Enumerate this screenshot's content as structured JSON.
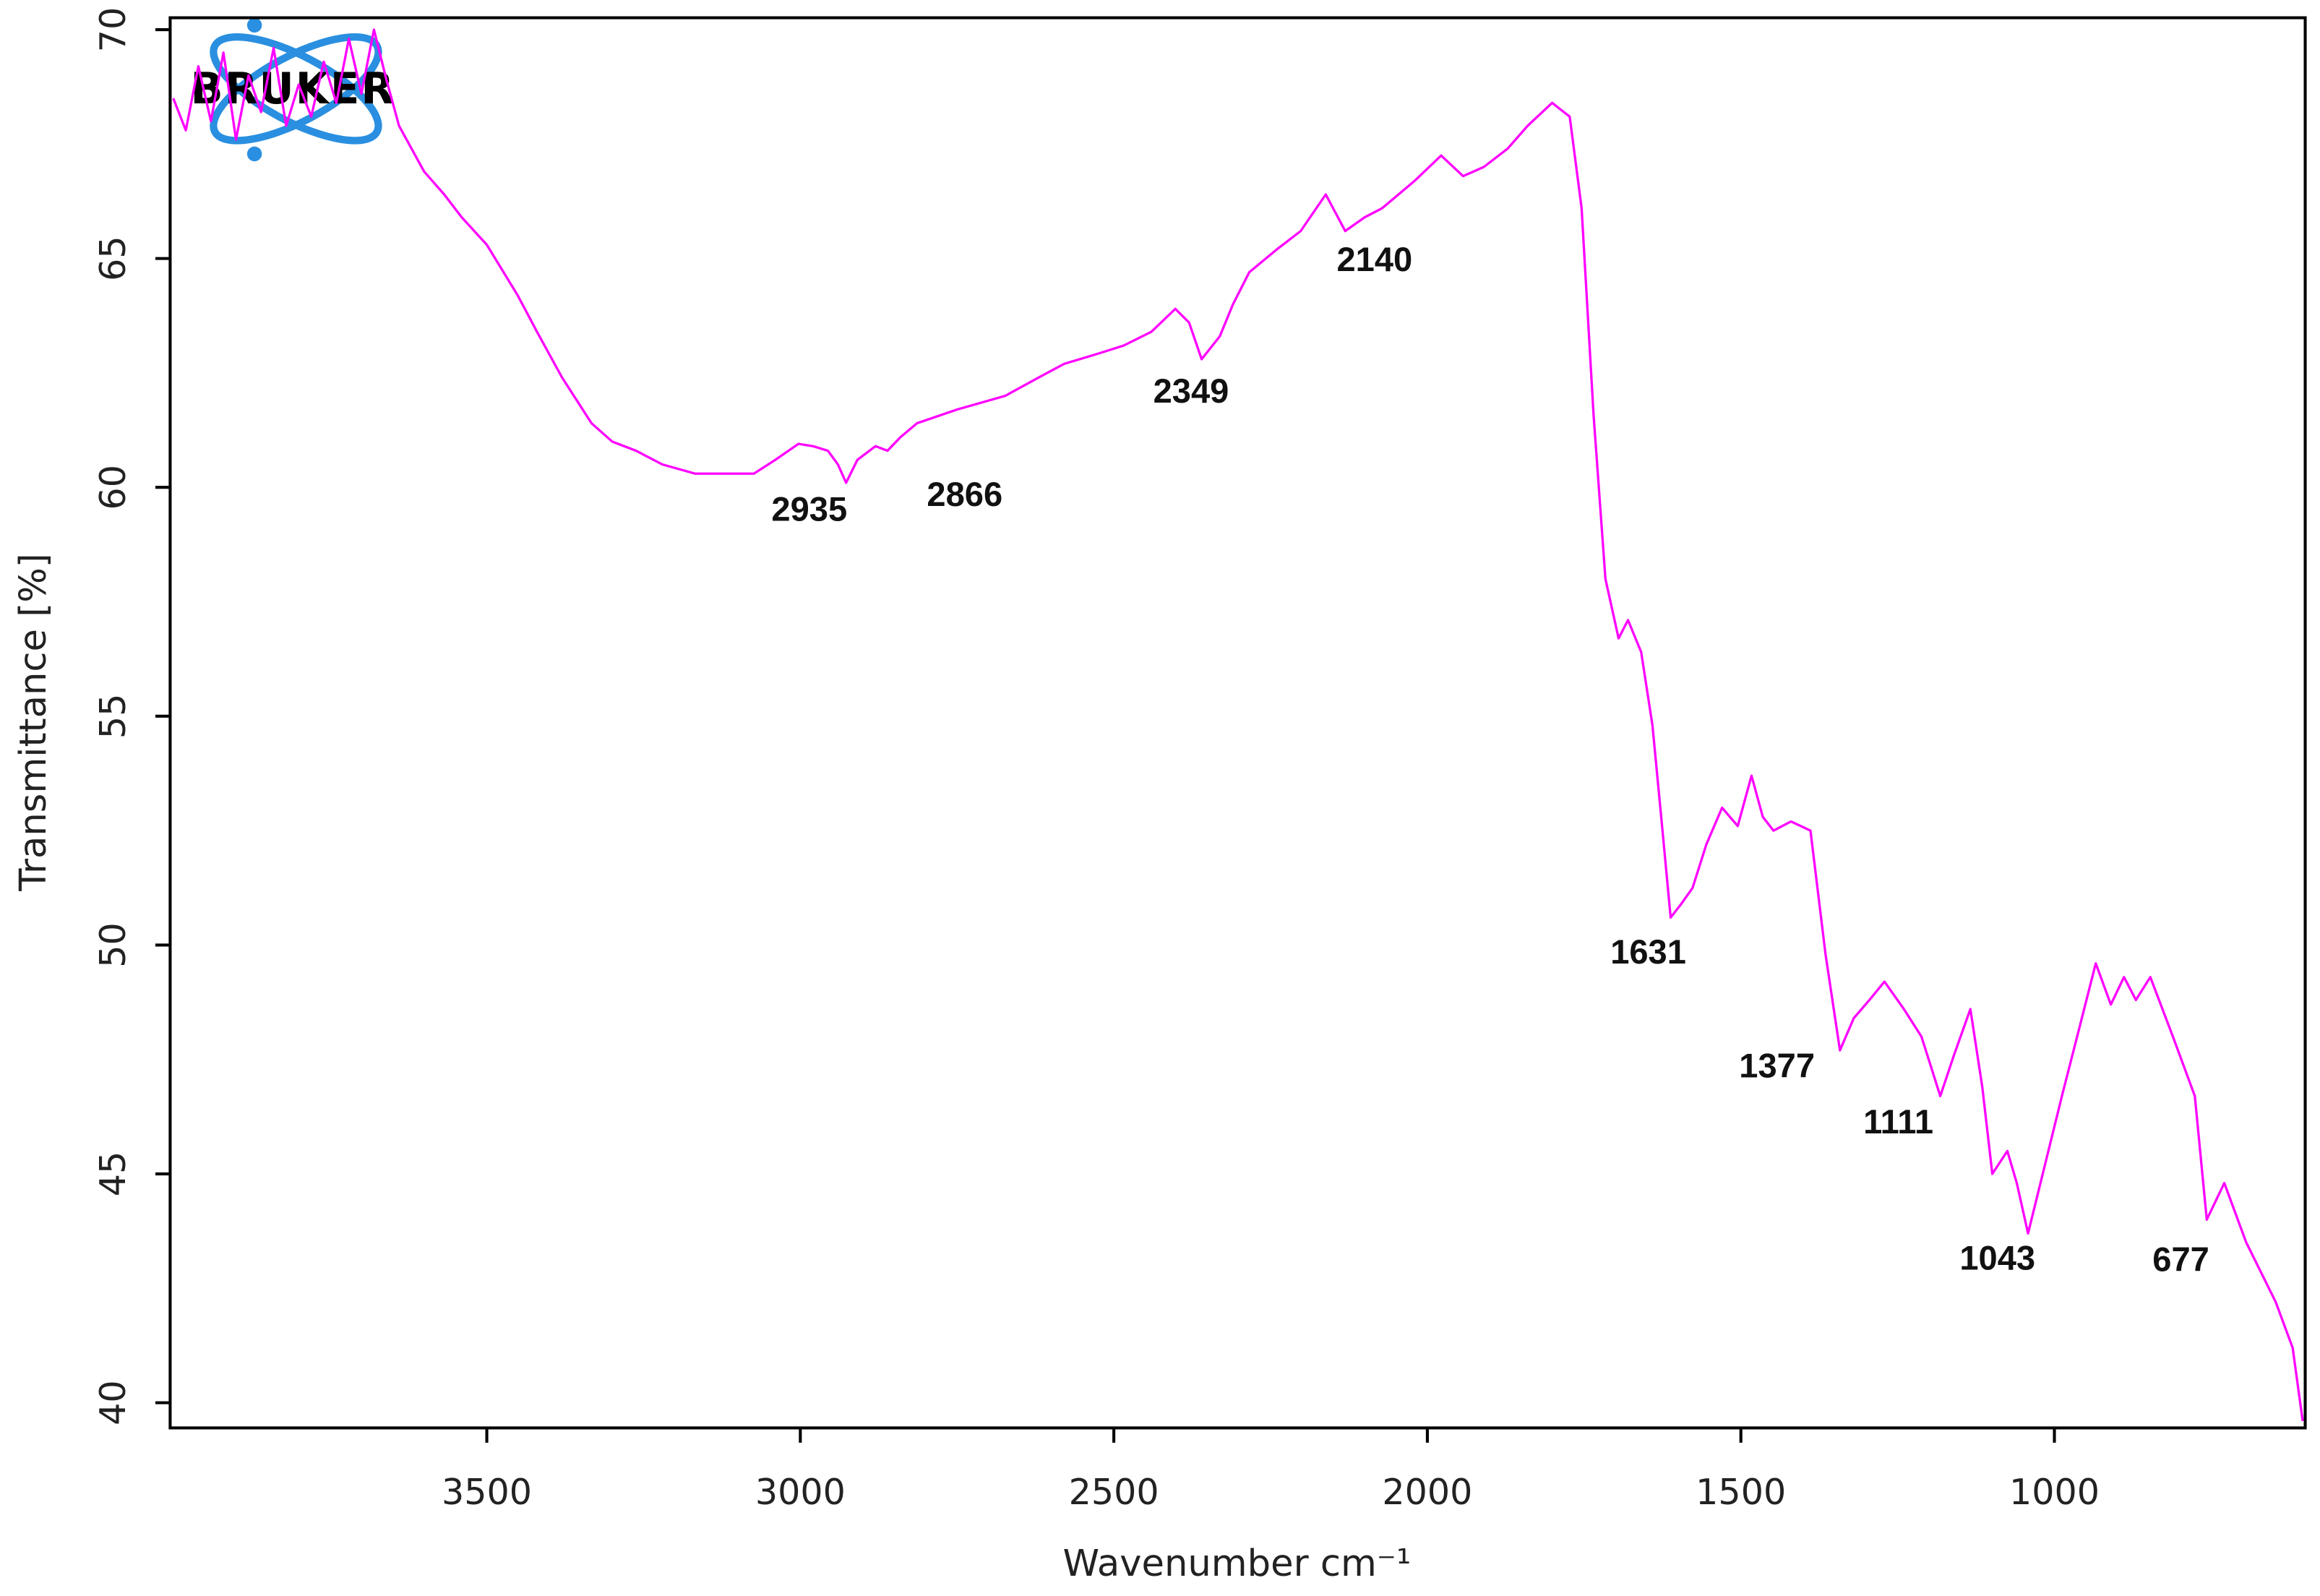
{
  "chart_data": {
    "type": "line",
    "logo": "BRUKER",
    "xlabel": "Wavenumber cm⁻¹",
    "ylabel": "Transmittance [%]",
    "color": "#ff00ff",
    "x_reversed": true,
    "xlim": [
      4005,
      600
    ],
    "ylim": [
      39.45,
      70.26
    ],
    "xticks": [
      3500,
      3000,
      2500,
      2000,
      1500,
      1000
    ],
    "yticks": [
      40,
      45,
      50,
      55,
      60,
      65,
      70
    ],
    "x": [
      4000,
      3980,
      3960,
      3940,
      3920,
      3900,
      3880,
      3860,
      3840,
      3820,
      3800,
      3780,
      3760,
      3740,
      3720,
      3700,
      3680,
      3660,
      3640,
      3620,
      3600,
      3568,
      3540,
      3500,
      3451,
      3420,
      3380,
      3333,
      3300,
      3262,
      3220,
      3168,
      3120,
      3074,
      3040,
      3003,
      2980,
      2956,
      2940,
      2927,
      2909,
      2880,
      2861,
      2840,
      2814,
      2750,
      2673,
      2620,
      2579,
      2530,
      2484,
      2440,
      2402,
      2380,
      2360,
      2331,
      2310,
      2284,
      2240,
      2202,
      2162,
      2131,
      2100,
      2072,
      2020,
      1978,
      1943,
      1910,
      1872,
      1840,
      1801,
      1773,
      1754,
      1735,
      1716,
      1695,
      1680,
      1659,
      1641,
      1625,
      1612,
      1595,
      1577,
      1555,
      1530,
      1505,
      1483,
      1465,
      1448,
      1420,
      1389,
      1365,
      1342,
      1320,
      1295,
      1271,
      1240,
      1212,
      1182,
      1160,
      1134,
      1115,
      1099,
      1075,
      1060,
      1042,
      1015,
      988,
      960,
      934,
      910,
      889,
      870,
      847,
      811,
      776,
      757,
      729,
      694,
      647,
      620,
      604
    ],
    "values": [
      68.5,
      67.8,
      69.2,
      68.0,
      69.5,
      67.6,
      69.0,
      68.2,
      69.6,
      67.9,
      68.8,
      68.1,
      69.3,
      68.4,
      69.8,
      68.6,
      70.0,
      68.9,
      67.9,
      67.4,
      66.9,
      66.4,
      65.9,
      65.3,
      64.2,
      63.4,
      62.4,
      61.4,
      61.0,
      60.8,
      60.5,
      60.3,
      60.3,
      60.3,
      60.6,
      60.95,
      60.9,
      60.8,
      60.5,
      60.1,
      60.6,
      60.9,
      60.8,
      61.1,
      61.4,
      61.7,
      62.0,
      62.4,
      62.7,
      62.9,
      63.1,
      63.4,
      63.9,
      63.6,
      62.8,
      63.3,
      64.0,
      64.7,
      65.2,
      65.6,
      66.4,
      65.6,
      65.9,
      66.1,
      66.7,
      67.25,
      66.8,
      67.0,
      67.4,
      67.9,
      68.4,
      68.1,
      66.1,
      61.6,
      58.0,
      56.7,
      57.1,
      56.4,
      54.8,
      52.5,
      50.6,
      50.9,
      51.25,
      52.2,
      53.0,
      52.6,
      53.7,
      52.8,
      52.5,
      52.7,
      52.5,
      49.8,
      47.7,
      48.4,
      48.8,
      49.2,
      48.6,
      48.0,
      46.7,
      47.6,
      48.6,
      46.9,
      45.0,
      45.5,
      44.8,
      43.7,
      45.2,
      46.7,
      48.2,
      49.6,
      48.7,
      49.3,
      48.8,
      49.3,
      48.0,
      46.7,
      44.0,
      44.8,
      43.5,
      42.2,
      41.2,
      39.6
    ],
    "annotations": [
      "2935",
      "2866",
      "2349",
      "2140",
      "1631",
      "1377",
      "1111",
      "1043",
      "677"
    ]
  }
}
